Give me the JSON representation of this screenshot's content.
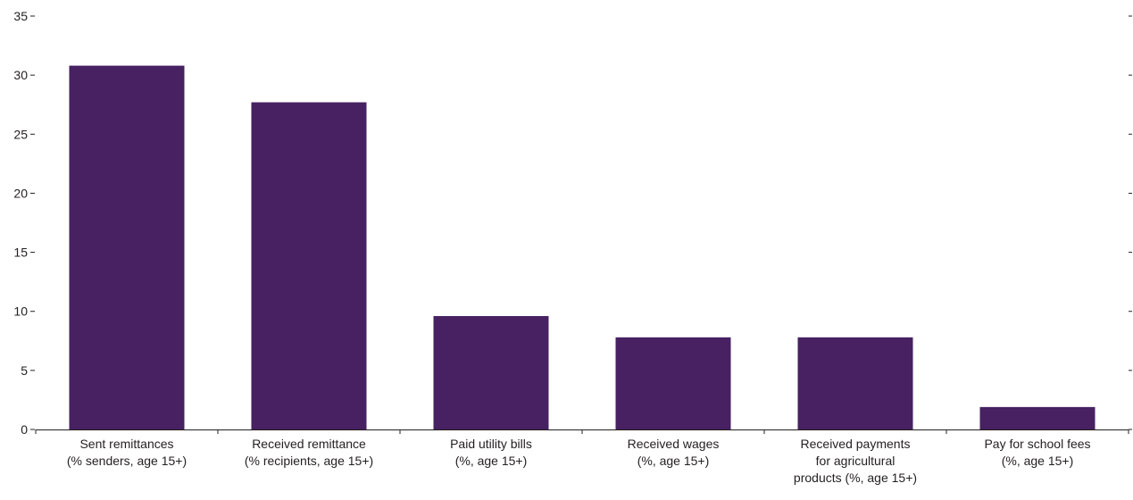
{
  "chart_data": {
    "type": "bar",
    "categories": [
      [
        "Sent remittances",
        "(% senders, age 15+)"
      ],
      [
        "Received remittance",
        "(% recipients, age 15+)"
      ],
      [
        "Paid utility bills",
        "(%, age 15+)"
      ],
      [
        "Received wages",
        "(%, age 15+)"
      ],
      [
        "Received payments",
        "for agricultural",
        "products (%, age 15+)"
      ],
      [
        "Pay for school fees",
        "(%, age 15+)"
      ]
    ],
    "values": [
      30.8,
      27.7,
      9.6,
      7.8,
      7.8,
      1.9
    ],
    "ylim": [
      0,
      35
    ],
    "yticks": [
      0,
      5,
      10,
      15,
      20,
      25,
      30,
      35
    ],
    "ytick_labels": [
      "0",
      "5",
      "10",
      "15",
      "20",
      "25",
      "30",
      "35"
    ],
    "title": "",
    "xlabel": "",
    "ylabel": "",
    "grid": false,
    "bar_color": "#472161",
    "text_color": "#231f20"
  }
}
